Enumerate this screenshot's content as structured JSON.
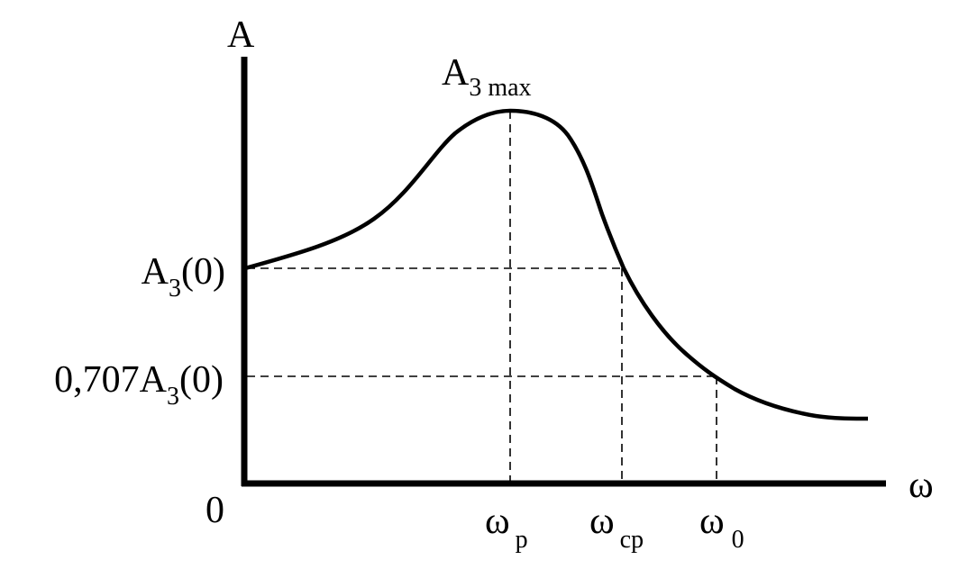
{
  "axes": {
    "y_label": "A",
    "x_label": "ω",
    "origin": "0"
  },
  "peak": {
    "main": "A",
    "sub": "3 max"
  },
  "y_marks": [
    {
      "main": "A",
      "sub": "3",
      "tail": "(0)"
    },
    {
      "main": "0,707A",
      "sub": "3",
      "tail": "(0)"
    }
  ],
  "x_marks": [
    {
      "main": "ω",
      "sub": "p"
    },
    {
      "main": "ω",
      "sub": "cp"
    },
    {
      "main": "ω",
      "sub": "0"
    }
  ]
}
